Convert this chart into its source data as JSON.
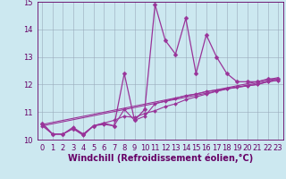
{
  "xlabel": "Windchill (Refroidissement éolien,°C)",
  "xlim": [
    -0.5,
    23.5
  ],
  "ylim": [
    10,
    15
  ],
  "xticks": [
    0,
    1,
    2,
    3,
    4,
    5,
    6,
    7,
    8,
    9,
    10,
    11,
    12,
    13,
    14,
    15,
    16,
    17,
    18,
    19,
    20,
    21,
    22,
    23
  ],
  "yticks": [
    10,
    11,
    12,
    13,
    14,
    15
  ],
  "bg_color": "#cce8f0",
  "line_color": "#993399",
  "grid_color": "#99aabb",
  "series": [
    {
      "x": [
        0,
        1,
        2,
        3,
        4,
        5,
        6,
        7,
        8,
        9,
        10,
        11,
        12,
        13,
        14,
        15,
        16,
        17,
        18,
        19,
        20,
        21,
        22,
        23
      ],
      "y": [
        10.6,
        10.2,
        10.2,
        10.4,
        10.2,
        10.5,
        10.6,
        10.5,
        12.4,
        10.7,
        11.1,
        14.9,
        13.6,
        13.1,
        14.4,
        12.4,
        13.8,
        13.0,
        12.4,
        12.1,
        12.1,
        12.1,
        12.2,
        12.2
      ]
    },
    {
      "x": [
        0,
        1,
        2,
        3,
        4,
        5,
        6,
        7,
        8,
        9,
        10,
        11,
        12,
        13,
        14,
        15,
        16,
        17,
        18,
        19,
        20,
        21,
        22,
        23
      ],
      "y": [
        10.55,
        10.2,
        10.2,
        10.4,
        10.15,
        10.5,
        10.55,
        10.5,
        11.1,
        10.7,
        10.85,
        11.3,
        11.4,
        11.5,
        11.6,
        11.65,
        11.75,
        11.8,
        11.85,
        11.9,
        11.95,
        12.0,
        12.1,
        12.15
      ]
    },
    {
      "x": [
        0,
        23
      ],
      "y": [
        10.5,
        12.2
      ]
    },
    {
      "x": [
        0,
        23
      ],
      "y": [
        10.55,
        12.25
      ]
    },
    {
      "x": [
        0,
        1,
        2,
        3,
        4,
        5,
        6,
        7,
        8,
        9,
        10,
        11,
        12,
        13,
        14,
        15,
        16,
        17,
        18,
        19,
        20,
        21,
        22,
        23
      ],
      "y": [
        10.5,
        10.2,
        10.2,
        10.45,
        10.2,
        10.5,
        10.6,
        10.7,
        10.85,
        10.8,
        10.95,
        11.05,
        11.2,
        11.3,
        11.45,
        11.55,
        11.65,
        11.75,
        11.85,
        11.9,
        11.95,
        12.0,
        12.1,
        12.15
      ]
    }
  ],
  "font_color": "#660066",
  "tick_fontsize": 6,
  "label_fontsize": 7
}
